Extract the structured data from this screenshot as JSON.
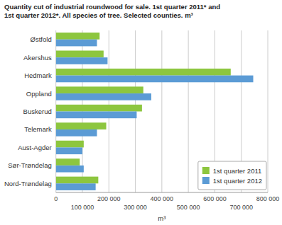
{
  "chart_data": {
    "type": "bar",
    "orientation": "horizontal",
    "title": "Quantity cut of industrial roundwood for sale. 1st quarter 2011* and",
    "subtitle": "1st quarter 2012*. All species of tree. Selected counties. m³",
    "x_label": "m³",
    "categories": [
      "Østfold",
      "Akershus",
      "Hedmark",
      "Oppland",
      "Buskerud",
      "Telemark",
      "Aust-Agder",
      "Sør-Trøndelag",
      "Nord-Trøndelag"
    ],
    "series": [
      {
        "name": "1st quarter 2011",
        "color": "#8dc63f",
        "values": [
          165000,
          180000,
          660000,
          330000,
          325000,
          190000,
          105000,
          90000,
          160000
        ]
      },
      {
        "name": "1st quarter 2012",
        "color": "#5b9bd5",
        "values": [
          155000,
          195000,
          745000,
          360000,
          305000,
          155000,
          100000,
          105000,
          150000
        ]
      }
    ],
    "xlim": [
      0,
      800000
    ],
    "xticks": [
      0,
      {
        "value": 100000,
        "label": "100 000"
      },
      {
        "value": 200000,
        "label": "200 000"
      },
      {
        "value": 300000,
        "label": "300 000"
      },
      {
        "value": 400000,
        "label": "400 000"
      },
      {
        "value": 500000,
        "label": "500 000"
      },
      {
        "value": 600000,
        "label": "600 000"
      },
      {
        "value": 700000,
        "label": "700 000"
      },
      {
        "value": 800000,
        "label": "800 000"
      }
    ],
    "grid": true,
    "legend": "lower right"
  }
}
